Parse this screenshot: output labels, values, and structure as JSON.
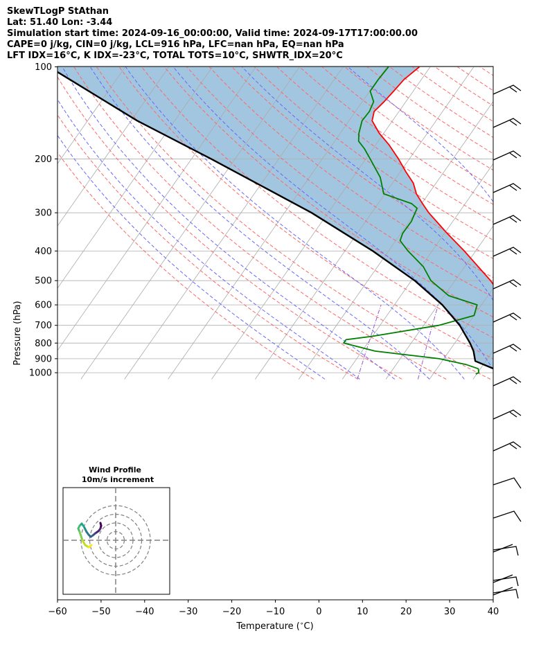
{
  "header": {
    "line1": "SkewTLogP StAthan",
    "line2": "Lat: 51.40   Lon: -3.44",
    "line3": "Simulation start time: 2024-09-16_00:00:00, Valid time: 2024-09-17T17:00:00.00",
    "line4": "CAPE=0 j/kg, CIN=0 j/kg, LCL=916 hPa, LFC=nan hPa, EQ=nan hPa",
    "line5": "LFT IDX=16°C, K IDX=-23°C, TOTAL TOTS=10°C, SHWTR_IDX=20°C"
  },
  "colors": {
    "temperature": "#ff0000",
    "dewpoint": "#008000",
    "parcel": "#000000",
    "fill": "#a3c6e0",
    "dry_adiabat": "#ff6666",
    "moist_adiabat": "#6666ff",
    "mixing_ratio": "#9955cc",
    "isotherm": "#aaaaaa",
    "grid": "#b0b0b0"
  },
  "chart_data": [
    {
      "type": "line",
      "subtype": "skew-T log-P",
      "xlabel": "Temperature ($^\\circ$C)",
      "ylabel": "Pressure (hPa)",
      "xlim": [
        -60,
        40
      ],
      "ylim": [
        1050,
        100
      ],
      "y_scale": "log",
      "x_ticks": [
        "−60",
        "−50",
        "−40",
        "−30",
        "−20",
        "−10",
        "0",
        "10",
        "20",
        "30",
        "40"
      ],
      "x_tick_values": [
        -60,
        -50,
        -40,
        -30,
        -20,
        -10,
        0,
        10,
        20,
        30,
        40
      ],
      "y_ticks": [
        "100",
        "200",
        "300",
        "400",
        "500",
        "600",
        "700",
        "800",
        "900",
        "1000"
      ],
      "y_tick_values": [
        100,
        200,
        300,
        400,
        500,
        600,
        700,
        800,
        900,
        1000
      ],
      "grid": true,
      "series": [
        {
          "role": "temperature",
          "color": "#ff0000",
          "p": [
            1000,
            950,
            900,
            850,
            800,
            750,
            700,
            650,
            600,
            550,
            500,
            450,
            400,
            350,
            300,
            280,
            260,
            240,
            220,
            200,
            180,
            165,
            150,
            140,
            130,
            120,
            110,
            100
          ],
          "t": [
            15.5,
            14.5,
            12.8,
            13.0,
            12.6,
            11.3,
            9.6,
            7.8,
            5.6,
            2.3,
            -1.8,
            -6.9,
            -12.6,
            -19.4,
            -26.9,
            -29.8,
            -32.8,
            -35.2,
            -38.8,
            -42.5,
            -46.9,
            -51.0,
            -54.7,
            -55.7,
            -55.0,
            -54.5,
            -54.0,
            -52.5
          ]
        },
        {
          "role": "dewpoint",
          "color": "#008000",
          "p": [
            1010,
            1000,
            970,
            940,
            900,
            850,
            800,
            780,
            760,
            700,
            650,
            600,
            560,
            500,
            450,
            400,
            370,
            350,
            320,
            290,
            280,
            260,
            230,
            200,
            185,
            175,
            165,
            150,
            140,
            130,
            120,
            110,
            100
          ],
          "t": [
            9.8,
            10.3,
            9.5,
            6.0,
            -1.0,
            -17.0,
            -25.5,
            -25.5,
            -20.0,
            -6.5,
            0.0,
            -1.0,
            -9.0,
            -15.5,
            -19.5,
            -25.5,
            -29.0,
            -29.6,
            -29.5,
            -30.3,
            -32.3,
            -40.3,
            -43.7,
            -49.0,
            -52.0,
            -54.5,
            -55.7,
            -57.0,
            -56.8,
            -57.4,
            -59.9,
            -59.9,
            -59.6
          ]
        },
        {
          "role": "parcel",
          "color": "#000000",
          "p": [
            1010,
            916,
            850,
            800,
            700,
            600,
            500,
            400,
            300,
            200,
            150,
            100
          ],
          "t": [
            16.8,
            7.6,
            5.6,
            3.5,
            -1.7,
            -9.0,
            -19.2,
            -33.6,
            -53.8,
            -85.5,
            -108.6,
            -137.5
          ]
        }
      ]
    },
    {
      "type": "line",
      "subtype": "hodograph",
      "title": "Wind Profile",
      "subtitle": "10m/s increment",
      "u": [
        1.0,
        1.2,
        1.0,
        0.5,
        -0.5,
        -1.2,
        -1.8,
        -2.4,
        -3.0,
        -3.4,
        -3.8,
        -4.4,
        -5.0,
        -5.4,
        -5.0,
        -4.2,
        -3.4,
        -2.4,
        -1.6
      ],
      "v": [
        -5.0,
        -4.2,
        -3.4,
        -2.7,
        -2.0,
        -1.4,
        -1.0,
        -1.6,
        -2.4,
        -3.2,
        -4.0,
        -4.8,
        -4.2,
        -3.4,
        -2.4,
        0.0,
        1.4,
        2.0,
        1.4
      ]
    }
  ]
}
